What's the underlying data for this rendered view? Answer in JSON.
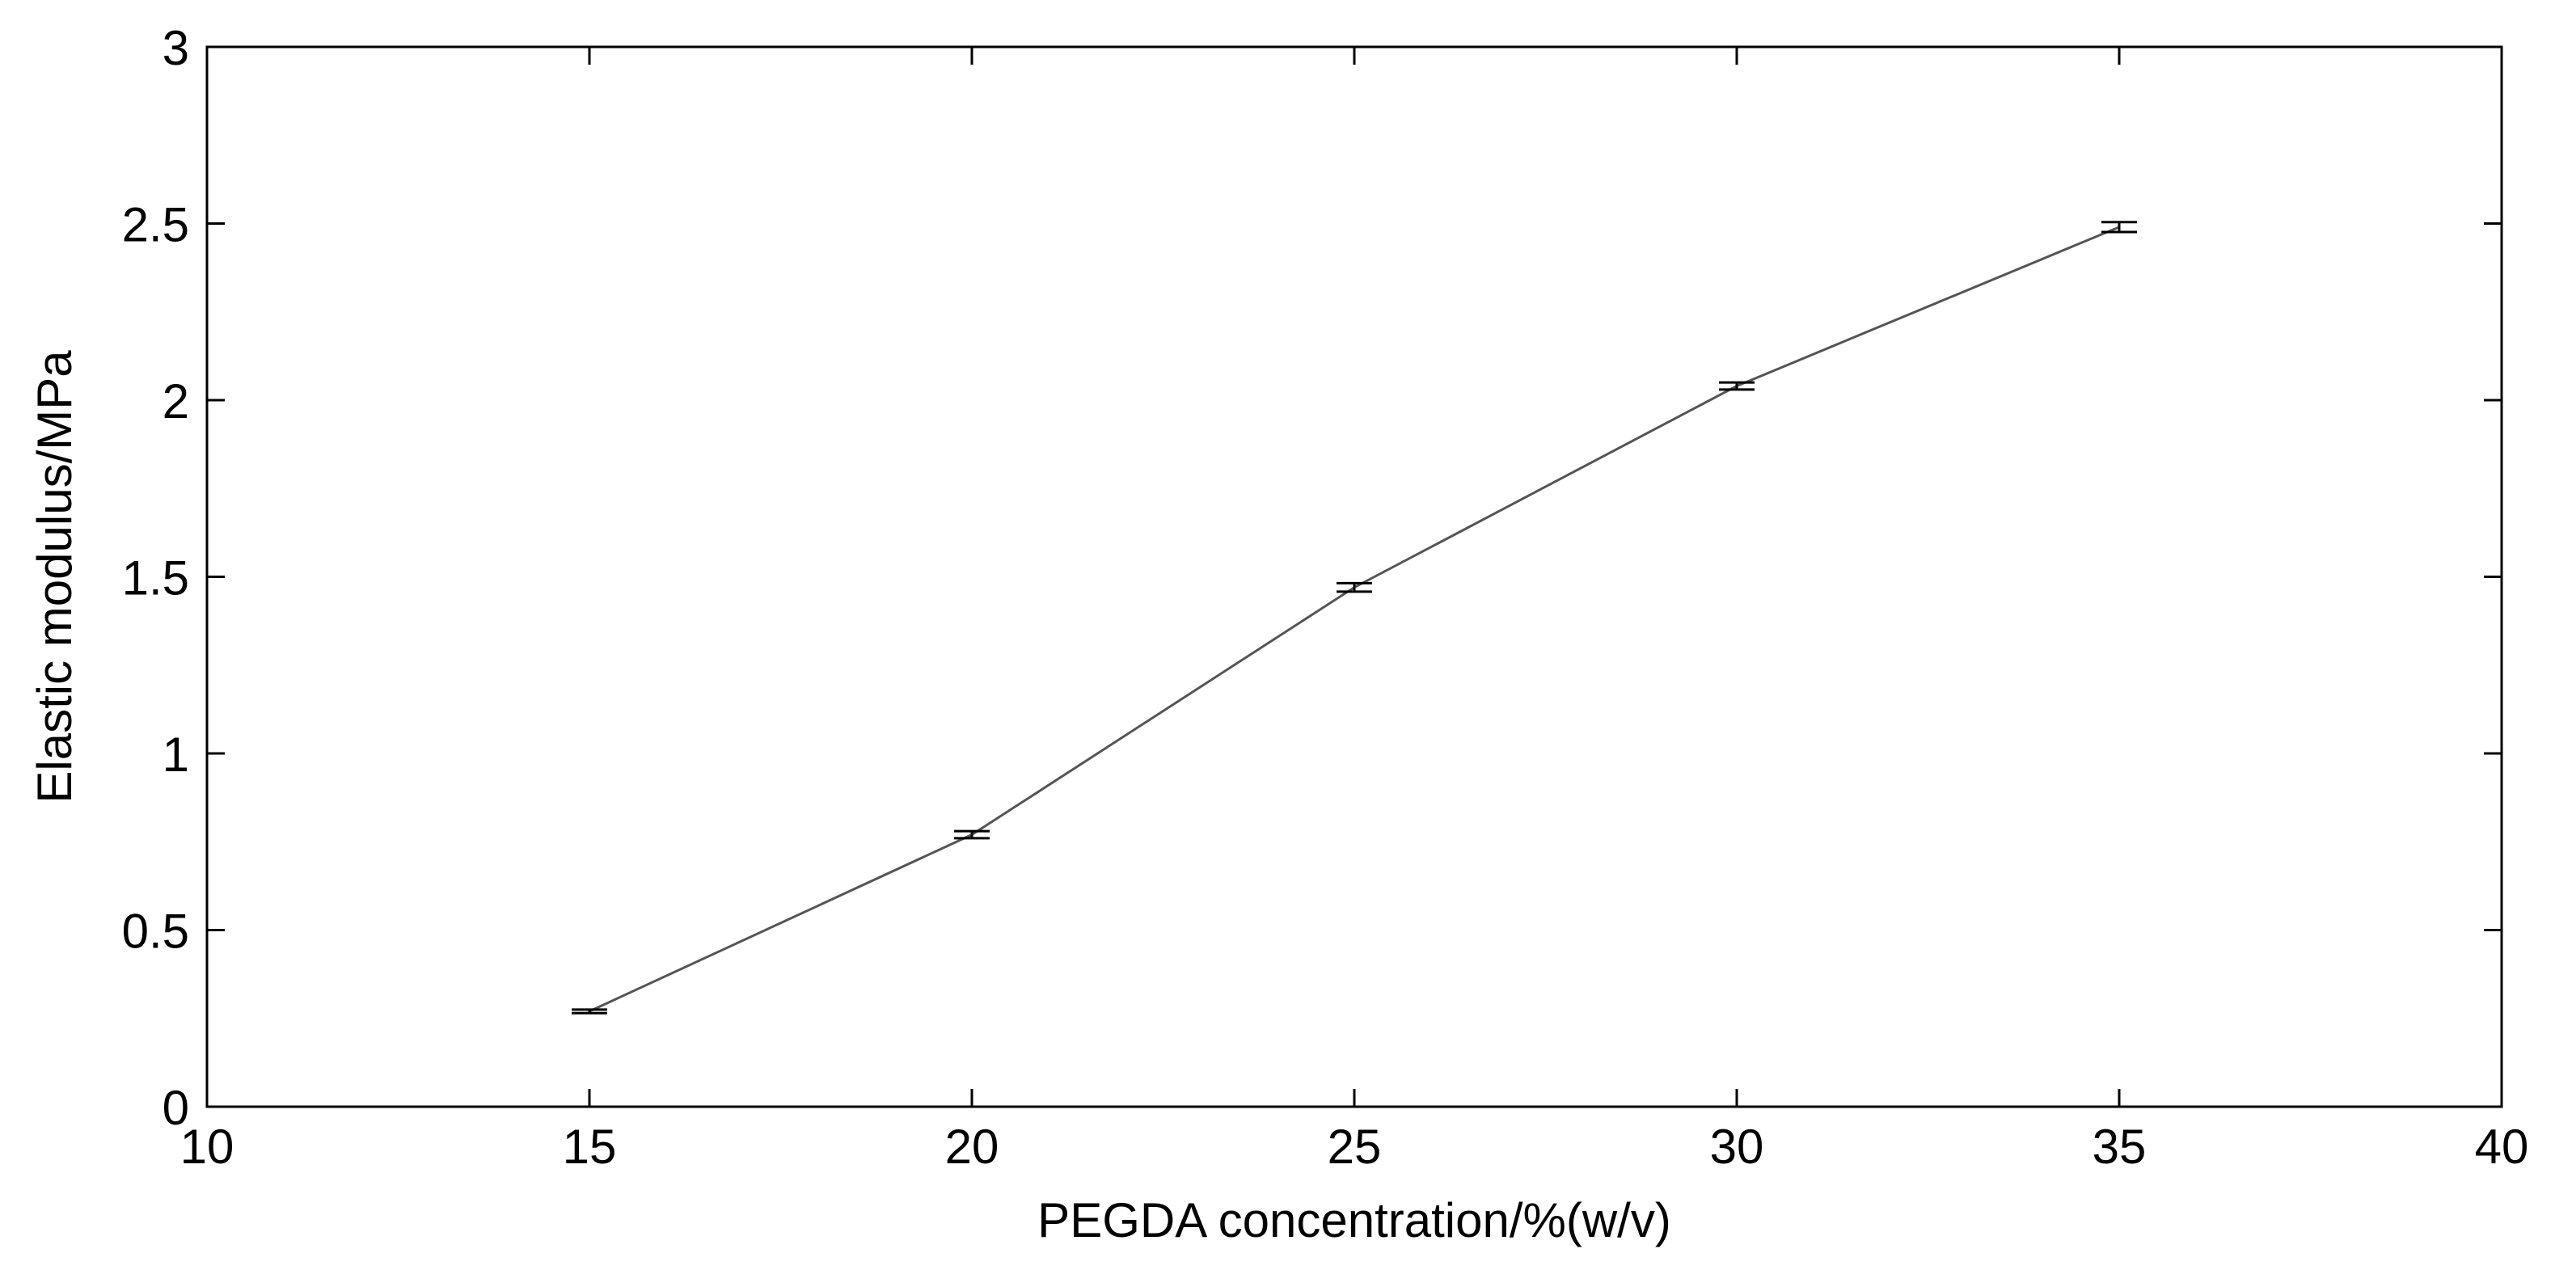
{
  "chart_data": {
    "type": "line",
    "title": "",
    "xlabel": "PEGDA concentration/%(w/v)",
    "ylabel": "Elastic modulus/MPa",
    "xlim": [
      10,
      40
    ],
    "ylim": [
      0,
      3
    ],
    "x_ticks": [
      10,
      15,
      20,
      25,
      30,
      35,
      40
    ],
    "x_tick_labels": [
      "10",
      "15",
      "20",
      "25",
      "30",
      "35",
      "40"
    ],
    "y_ticks": [
      0,
      0.5,
      1,
      1.5,
      2,
      2.5,
      3
    ],
    "y_tick_labels": [
      "0",
      "0.5",
      "1",
      "1.5",
      "2",
      "2.5",
      "3"
    ],
    "grid": false,
    "series": [
      {
        "x": [
          15,
          20,
          25,
          30,
          35
        ],
        "y": [
          0.27,
          0.77,
          1.47,
          2.04,
          2.49
        ],
        "error": [
          0.005,
          0.01,
          0.012,
          0.01,
          0.014
        ]
      }
    ],
    "colors": {
      "line": "#555555",
      "axes": "#000000",
      "background": "#ffffff"
    }
  }
}
